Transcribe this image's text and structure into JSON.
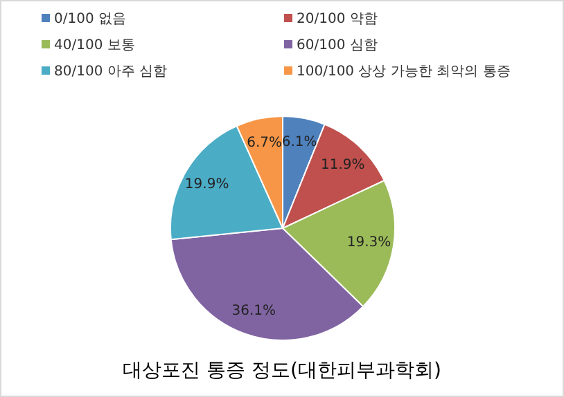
{
  "chart_data": {
    "type": "pie",
    "title": "대상포진 통증 정도(대한피부과학회)",
    "categories": [
      "0/100 없음",
      "20/100 약함",
      "40/100 보통",
      "60/100 심함",
      "80/100 아주 심함",
      "100/100 상상 가능한 최악의 통증"
    ],
    "values": [
      6.1,
      11.9,
      19.3,
      36.1,
      19.9,
      6.7
    ],
    "colors": [
      "#4f81bd",
      "#c0504d",
      "#9bbb59",
      "#8064a2",
      "#4bacc6",
      "#f79646"
    ],
    "value_labels": [
      "6.1%",
      "11.9%",
      "19.3%",
      "36.1%",
      "19.9%",
      "6.7%"
    ],
    "legend": "top"
  }
}
